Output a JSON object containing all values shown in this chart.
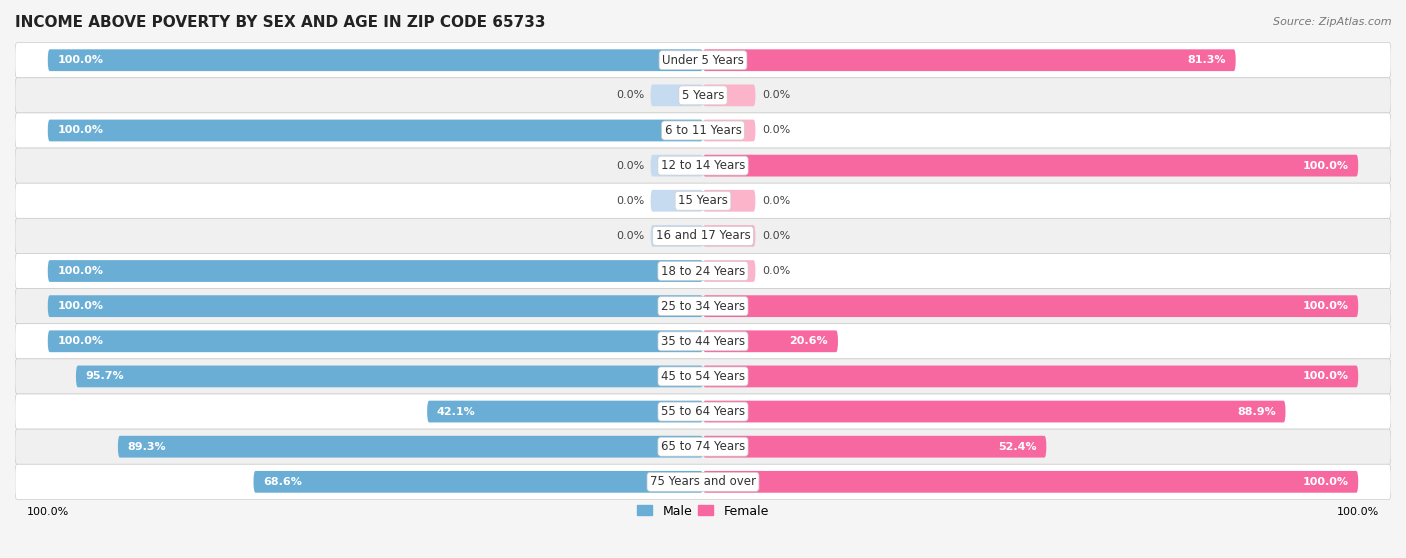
{
  "title": "INCOME ABOVE POVERTY BY SEX AND AGE IN ZIP CODE 65733",
  "source": "Source: ZipAtlas.com",
  "categories": [
    "Under 5 Years",
    "5 Years",
    "6 to 11 Years",
    "12 to 14 Years",
    "15 Years",
    "16 and 17 Years",
    "18 to 24 Years",
    "25 to 34 Years",
    "35 to 44 Years",
    "45 to 54 Years",
    "55 to 64 Years",
    "65 to 74 Years",
    "75 Years and over"
  ],
  "male_values": [
    100.0,
    0.0,
    100.0,
    0.0,
    0.0,
    0.0,
    100.0,
    100.0,
    100.0,
    95.7,
    42.1,
    89.3,
    68.6
  ],
  "female_values": [
    81.3,
    0.0,
    0.0,
    100.0,
    0.0,
    0.0,
    0.0,
    100.0,
    20.6,
    100.0,
    88.9,
    52.4,
    100.0
  ],
  "male_color": "#6aaed6",
  "female_color": "#f768a1",
  "male_color_light": "#c6dbef",
  "female_color_light": "#fbb4c9",
  "row_color_odd": "#f0f0f0",
  "row_color_even": "#ffffff",
  "background_color": "#f5f5f5",
  "title_fontsize": 11,
  "label_fontsize": 8.5,
  "value_fontsize": 8,
  "legend_fontsize": 9,
  "source_fontsize": 8,
  "bar_height": 0.62,
  "xlim": 100,
  "zero_stub": 8
}
